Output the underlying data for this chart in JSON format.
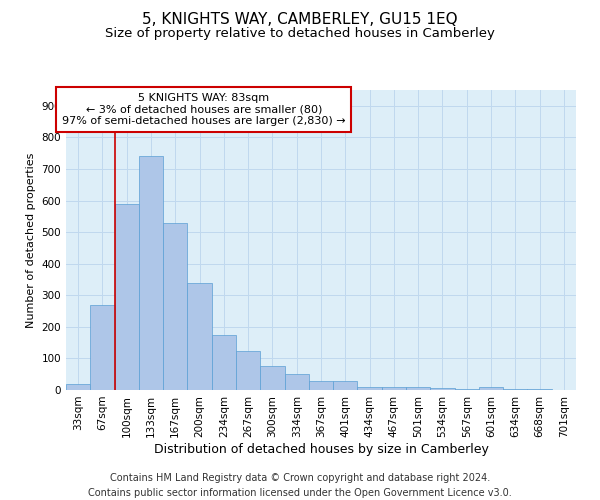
{
  "title": "5, KNIGHTS WAY, CAMBERLEY, GU15 1EQ",
  "subtitle": "Size of property relative to detached houses in Camberley",
  "xlabel": "Distribution of detached houses by size in Camberley",
  "ylabel": "Number of detached properties",
  "categories": [
    "33sqm",
    "67sqm",
    "100sqm",
    "133sqm",
    "167sqm",
    "200sqm",
    "234sqm",
    "267sqm",
    "300sqm",
    "334sqm",
    "367sqm",
    "401sqm",
    "434sqm",
    "467sqm",
    "501sqm",
    "534sqm",
    "567sqm",
    "601sqm",
    "634sqm",
    "668sqm",
    "701sqm"
  ],
  "values": [
    20,
    270,
    590,
    740,
    530,
    340,
    175,
    125,
    75,
    50,
    30,
    30,
    10,
    10,
    10,
    5,
    3,
    10,
    2,
    2,
    0
  ],
  "bar_color": "#aec6e8",
  "bar_edge_color": "#5a9fd4",
  "grid_color": "#c0d8ee",
  "background_color": "#ddeef8",
  "annotation_text_line1": "5 KNIGHTS WAY: 83sqm",
  "annotation_text_line2": "← 3% of detached houses are smaller (80)",
  "annotation_text_line3": "97% of semi-detached houses are larger (2,830) →",
  "annotation_box_color": "#ffffff",
  "annotation_border_color": "#cc0000",
  "vline_color": "#cc0000",
  "footer_line1": "Contains HM Land Registry data © Crown copyright and database right 2024.",
  "footer_line2": "Contains public sector information licensed under the Open Government Licence v3.0.",
  "ylim": [
    0,
    950
  ],
  "vline_x_idx": 1.0,
  "title_fontsize": 11,
  "subtitle_fontsize": 9.5,
  "xlabel_fontsize": 9,
  "ylabel_fontsize": 8,
  "tick_fontsize": 7.5,
  "footer_fontsize": 7,
  "ann_fontsize": 8
}
